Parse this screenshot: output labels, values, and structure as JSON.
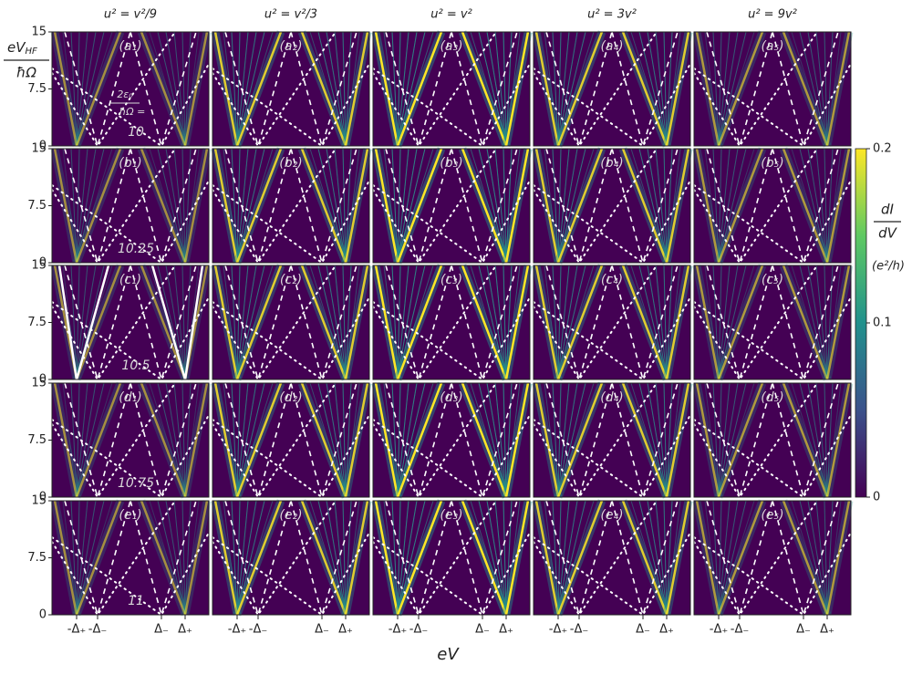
{
  "columns": [
    "u² = v²/9",
    "u² = v²/3",
    "u² = v²",
    "u² = 3v²",
    "u² = 9v²"
  ],
  "rows": [
    {
      "panels": [
        "(a₁)",
        "(a₂)",
        "(a₃)",
        "(a₄)",
        "(a₅)"
      ],
      "param": 10
    },
    {
      "panels": [
        "(b₁)",
        "(b₂)",
        "(b₃)",
        "(b₄)",
        "(b₅)"
      ],
      "param": 10.25
    },
    {
      "panels": [
        "(c₁)",
        "(c₂)",
        "(c₃)",
        "(c₄)",
        "(c₅)"
      ],
      "param": 10.5
    },
    {
      "panels": [
        "(d₁)",
        "(d₂)",
        "(d₃)",
        "(d₄)",
        "(d₅)"
      ],
      "param": 10.75
    },
    {
      "panels": [
        "(e₁)",
        "(e₂)",
        "(e₃)",
        "(e₄)",
        "(e₅)"
      ],
      "param": 11
    }
  ],
  "param_label_num": "2ε₀",
  "param_label_den": "ħΩ =",
  "y_axis": {
    "label_main": "eV",
    "label_sub": "HF",
    "label_den": "ħΩ",
    "ylim": [
      0,
      15
    ],
    "ticks": [
      15,
      7.5,
      0
    ]
  },
  "x_axis": {
    "label": "eV",
    "ticks": [
      "-Δ₊",
      "-Δ₋",
      "Δ₋",
      "Δ₊"
    ]
  },
  "colorbar": {
    "label_num": "dI",
    "label_den": "dV",
    "unit": "(e²/h)",
    "lim": [
      0,
      0.2
    ],
    "ticks": [
      0.2,
      0.1,
      0
    ]
  }
}
